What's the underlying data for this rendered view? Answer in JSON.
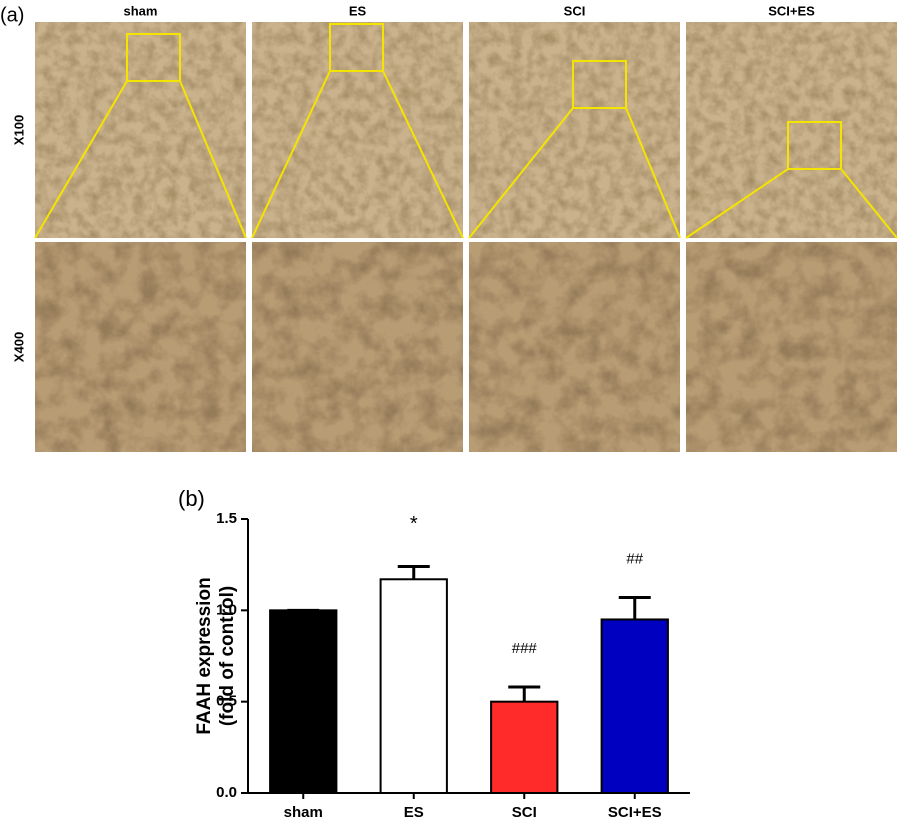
{
  "panel_a": {
    "label": "(a)",
    "columns": [
      "sham",
      "ES",
      "SCI",
      "SCI+ES"
    ],
    "rows": [
      "X100",
      "X400"
    ]
  },
  "chart_data": {
    "type": "bar",
    "panel_label": "(b)",
    "ylabel": [
      "FAAH expression",
      "(fold of control)"
    ],
    "categories": [
      "sham",
      "ES",
      "SCI",
      "SCI+ES"
    ],
    "values": [
      1.0,
      1.17,
      0.5,
      0.95
    ],
    "errors": [
      0,
      0.07,
      0.08,
      0.12
    ],
    "colors": [
      "#000000",
      "#ffffff",
      "#ff2a2a",
      "#0000c0"
    ],
    "annotations": [
      null,
      "*",
      "###",
      "##"
    ],
    "ylim": [
      0,
      1.5
    ],
    "yticks": [
      {
        "value": 0,
        "label": "0.0"
      },
      {
        "value": 0.5,
        "label": "0.5"
      },
      {
        "value": 1,
        "label": "1.0"
      },
      {
        "value": 1.5,
        "label": "1.5"
      }
    ]
  }
}
